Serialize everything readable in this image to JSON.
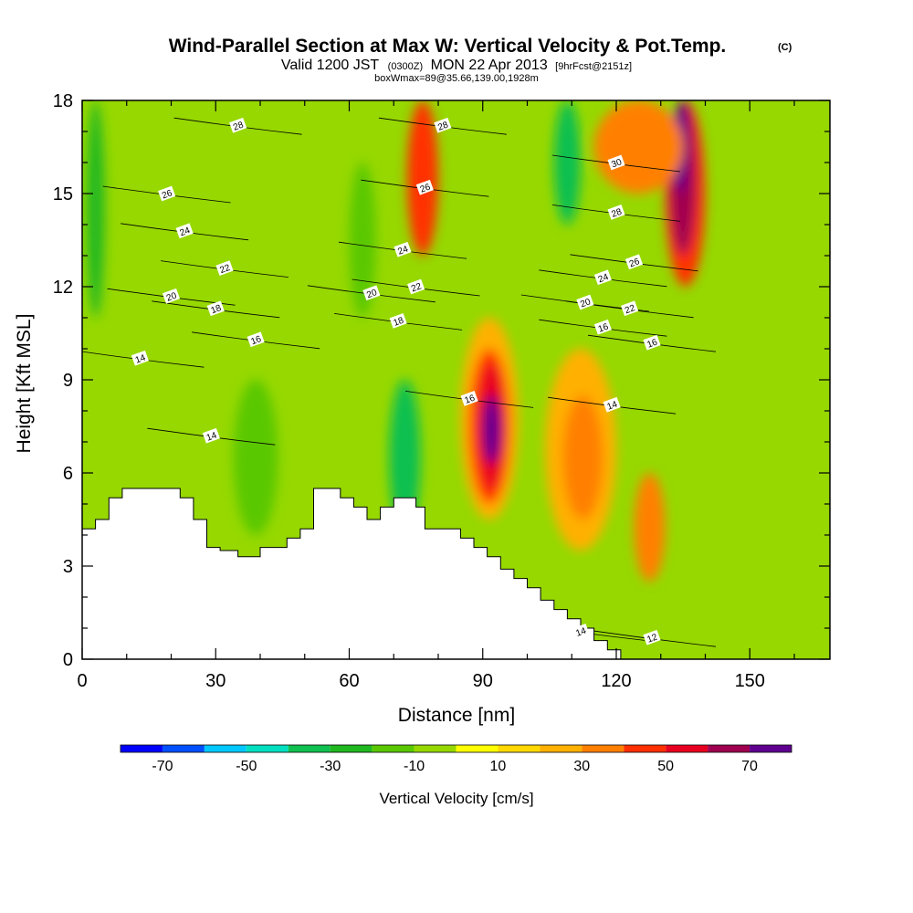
{
  "chart_data": {
    "type": "heatmap",
    "title": "Wind-Parallel Section at Max W: Vertical Velocity & Pot.Temp.",
    "title_unit": "(C)",
    "subtitle": {
      "valid_prefix": "Valid 1200 JST",
      "utc": "(0300Z)",
      "date": "MON 22 Apr 2013",
      "forecast": "[9hrFcst@2151z]"
    },
    "box_info": "boxWmax=89@35.66,139.00,1928m",
    "xlabel": "Distance [nm]",
    "ylabel": "Height [Kft MSL]",
    "xlim": [
      0,
      168
    ],
    "ylim": [
      0,
      18
    ],
    "xticks": [
      0,
      30,
      60,
      90,
      120,
      150
    ],
    "yticks": [
      0,
      3,
      6,
      9,
      12,
      15,
      18
    ],
    "colorbar": {
      "title": "Vertical Velocity [cm/s]",
      "boundaries": [
        -80,
        -70,
        -60,
        -50,
        -40,
        -30,
        -20,
        -10,
        0,
        10,
        20,
        30,
        40,
        50,
        60,
        70,
        80
      ],
      "colors": [
        "#0000ff",
        "#0050ff",
        "#00c8ff",
        "#00e0c0",
        "#10c050",
        "#20b820",
        "#5ac800",
        "#96d800",
        "#ffff00",
        "#ffd800",
        "#ffb000",
        "#ff8000",
        "#ff3000",
        "#e80020",
        "#a00050",
        "#600090"
      ],
      "tick_labels": [
        "-70",
        "-50",
        "-30",
        "-10",
        "10",
        "30",
        "50",
        "70"
      ],
      "tick_values": [
        -70,
        -50,
        -30,
        -10,
        10,
        30,
        50,
        70
      ]
    },
    "terrain": [
      [
        0,
        4.2
      ],
      [
        3,
        4.2
      ],
      [
        3,
        4.5
      ],
      [
        6,
        4.5
      ],
      [
        6,
        5.2
      ],
      [
        9,
        5.2
      ],
      [
        9,
        5.5
      ],
      [
        22,
        5.5
      ],
      [
        22,
        5.2
      ],
      [
        25,
        5.2
      ],
      [
        25,
        4.5
      ],
      [
        28,
        4.5
      ],
      [
        28,
        3.6
      ],
      [
        31,
        3.6
      ],
      [
        31,
        3.5
      ],
      [
        35,
        3.5
      ],
      [
        35,
        3.3
      ],
      [
        40,
        3.3
      ],
      [
        40,
        3.6
      ],
      [
        46,
        3.6
      ],
      [
        46,
        3.9
      ],
      [
        49,
        3.9
      ],
      [
        49,
        4.2
      ],
      [
        52,
        4.2
      ],
      [
        52,
        5.5
      ],
      [
        58,
        5.5
      ],
      [
        58,
        5.2
      ],
      [
        61,
        5.2
      ],
      [
        61,
        4.9
      ],
      [
        64,
        4.9
      ],
      [
        64,
        4.5
      ],
      [
        67,
        4.5
      ],
      [
        67,
        4.9
      ],
      [
        70,
        4.9
      ],
      [
        70,
        5.2
      ],
      [
        75,
        5.2
      ],
      [
        75,
        4.9
      ],
      [
        77,
        4.9
      ],
      [
        77,
        4.2
      ],
      [
        85,
        4.2
      ],
      [
        85,
        3.9
      ],
      [
        88,
        3.9
      ],
      [
        88,
        3.6
      ],
      [
        91,
        3.6
      ],
      [
        91,
        3.3
      ],
      [
        94,
        3.3
      ],
      [
        94,
        2.9
      ],
      [
        97,
        2.9
      ],
      [
        97,
        2.6
      ],
      [
        100,
        2.6
      ],
      [
        100,
        2.3
      ],
      [
        103,
        2.3
      ],
      [
        103,
        1.9
      ],
      [
        106,
        1.9
      ],
      [
        106,
        1.6
      ],
      [
        109,
        1.6
      ],
      [
        109,
        1.3
      ],
      [
        112,
        1.3
      ],
      [
        112,
        1.0
      ],
      [
        115,
        1.0
      ],
      [
        115,
        0.6
      ],
      [
        118,
        0.6
      ],
      [
        118,
        0.3
      ],
      [
        121,
        0.3
      ],
      [
        121,
        0.0
      ]
    ],
    "velocity_cells": [
      {
        "x": [
          85,
          98
        ],
        "y": [
          4.5,
          11
        ],
        "value": 20
      },
      {
        "x": [
          87,
          96
        ],
        "y": [
          5,
          10
        ],
        "value": 40
      },
      {
        "x": [
          89,
          95
        ],
        "y": [
          5.5,
          9.5
        ],
        "value": 55
      },
      {
        "x": [
          90,
          94
        ],
        "y": [
          6.3,
          8.5
        ],
        "value": 75
      },
      {
        "x": [
          131,
          140
        ],
        "y": [
          12,
          18
        ],
        "value": 40
      },
      {
        "x": [
          132,
          138
        ],
        "y": [
          13,
          18
        ],
        "value": 60
      },
      {
        "x": [
          133,
          136
        ],
        "y": [
          15,
          18
        ],
        "value": 75
      },
      {
        "x": [
          73,
          80
        ],
        "y": [
          13,
          18
        ],
        "value": 40
      },
      {
        "x": [
          104,
          120
        ],
        "y": [
          3.5,
          10
        ],
        "value": 25
      },
      {
        "x": [
          108,
          117
        ],
        "y": [
          4.5,
          8.5
        ],
        "value": 35
      },
      {
        "x": [
          124,
          131
        ],
        "y": [
          2.5,
          6
        ],
        "value": 30
      },
      {
        "x": [
          115,
          135
        ],
        "y": [
          15,
          18
        ],
        "value": 35
      },
      {
        "x": [
          106,
          112
        ],
        "y": [
          14,
          18
        ],
        "value": -35
      },
      {
        "x": [
          69,
          76
        ],
        "y": [
          4,
          9
        ],
        "value": -35
      },
      {
        "x": [
          1,
          5
        ],
        "y": [
          11,
          18
        ],
        "value": -25
      },
      {
        "x": [
          34,
          44
        ],
        "y": [
          4,
          9
        ],
        "value": -15
      },
      {
        "x": [
          60,
          66
        ],
        "y": [
          11,
          16
        ],
        "value": -15
      }
    ],
    "isentrope_labels": [
      {
        "x": 35,
        "y": 17.2,
        "text": "28"
      },
      {
        "x": 19,
        "y": 15.0,
        "text": "26"
      },
      {
        "x": 23,
        "y": 13.8,
        "text": "24"
      },
      {
        "x": 32,
        "y": 12.6,
        "text": "22"
      },
      {
        "x": 20,
        "y": 11.7,
        "text": "20"
      },
      {
        "x": 30,
        "y": 11.3,
        "text": "18"
      },
      {
        "x": 39,
        "y": 10.3,
        "text": "16"
      },
      {
        "x": 13,
        "y": 9.7,
        "text": "14"
      },
      {
        "x": 29,
        "y": 7.2,
        "text": "14"
      },
      {
        "x": 81,
        "y": 17.2,
        "text": "28"
      },
      {
        "x": 77,
        "y": 15.2,
        "text": "26"
      },
      {
        "x": 72,
        "y": 13.2,
        "text": "24"
      },
      {
        "x": 75,
        "y": 12.0,
        "text": "22"
      },
      {
        "x": 65,
        "y": 11.8,
        "text": "20"
      },
      {
        "x": 71,
        "y": 10.9,
        "text": "18"
      },
      {
        "x": 87,
        "y": 8.4,
        "text": "16"
      },
      {
        "x": 120,
        "y": 16.0,
        "text": "30"
      },
      {
        "x": 120,
        "y": 14.4,
        "text": "28"
      },
      {
        "x": 124,
        "y": 12.8,
        "text": "26"
      },
      {
        "x": 117,
        "y": 12.3,
        "text": "24"
      },
      {
        "x": 113,
        "y": 11.5,
        "text": "20"
      },
      {
        "x": 123,
        "y": 11.3,
        "text": "22"
      },
      {
        "x": 117,
        "y": 10.7,
        "text": "16"
      },
      {
        "x": 128,
        "y": 10.2,
        "text": "16"
      },
      {
        "x": 119,
        "y": 8.2,
        "text": "14"
      },
      {
        "x": 112,
        "y": 0.9,
        "text": "14"
      },
      {
        "x": 128,
        "y": 0.7,
        "text": "12"
      }
    ]
  }
}
